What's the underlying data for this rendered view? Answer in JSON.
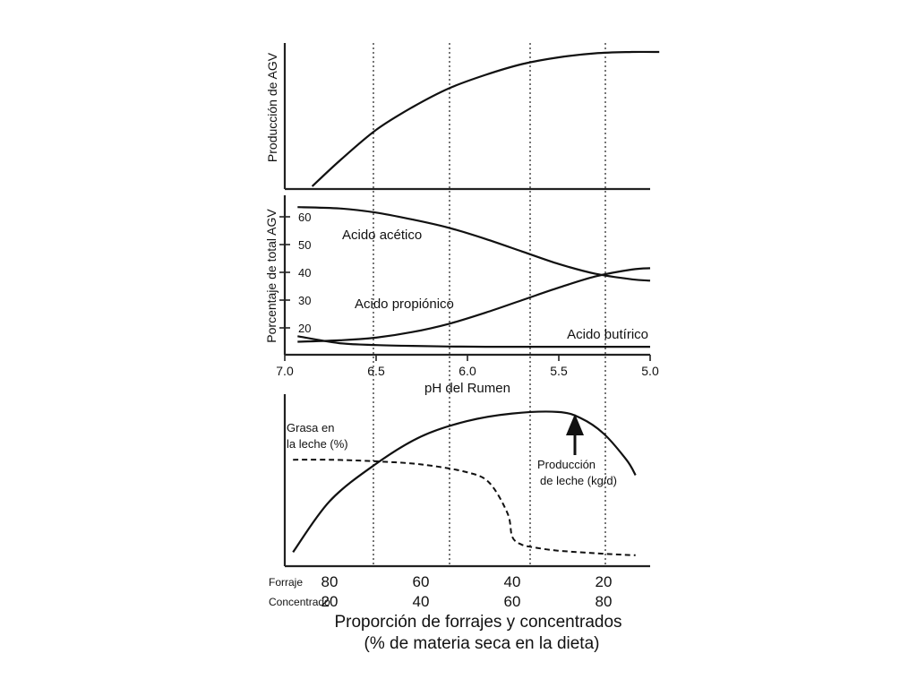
{
  "chart_data": [
    {
      "type": "line",
      "panel": "top",
      "ylabel": "Producción de AGV",
      "x_axis": "pH del Rumen",
      "xlim": [
        7.0,
        5.0
      ],
      "ylim": [
        0,
        1
      ],
      "y_ticks_printed": false,
      "series": [
        {
          "x": [
            6.85,
            6.7,
            6.5,
            6.3,
            6.1,
            5.9,
            5.7,
            5.5,
            5.3,
            5.1,
            4.95
          ],
          "y": [
            0.0,
            0.19,
            0.42,
            0.59,
            0.73,
            0.83,
            0.91,
            0.96,
            0.99,
            1.0,
            1.0
          ]
        }
      ]
    },
    {
      "type": "line",
      "panel": "middle",
      "ylabel": "Porcentaje de total AGV",
      "xlabel": "pH del Rumen",
      "xlim": [
        7.0,
        5.0
      ],
      "ylim": [
        10,
        65
      ],
      "y_ticks": [
        20,
        30,
        40,
        50,
        60
      ],
      "x_ticks": [
        "7.0",
        "6.5",
        "6.0",
        "5.5",
        "5.0"
      ],
      "series": [
        {
          "name": "Acido acético",
          "x": [
            6.93,
            6.7,
            6.5,
            6.3,
            6.1,
            5.9,
            5.7,
            5.5,
            5.3,
            5.1,
            5.0
          ],
          "y": [
            63.5,
            63,
            61.5,
            59,
            56,
            52,
            47.5,
            43,
            39.5,
            37.5,
            37
          ]
        },
        {
          "name": "Acido propiónico",
          "x": [
            6.93,
            6.7,
            6.5,
            6.3,
            6.1,
            5.9,
            5.7,
            5.5,
            5.3,
            5.1,
            5.0
          ],
          "y": [
            15,
            15.5,
            16.5,
            18.5,
            21.5,
            25.5,
            30,
            34.5,
            38.5,
            41,
            41.5
          ]
        },
        {
          "name": "Acido butírico",
          "x": [
            6.93,
            6.7,
            6.5,
            6.3,
            6.1,
            5.9,
            5.7,
            5.5,
            5.3,
            5.1,
            5.0
          ],
          "y": [
            17,
            14.5,
            13.8,
            13.5,
            13.3,
            13.2,
            13.2,
            13.2,
            13.2,
            13.2,
            13.2
          ]
        }
      ]
    },
    {
      "type": "line",
      "panel": "bottom",
      "xlabel": "Proporción de forrajes y concentrados",
      "xlabel_sub": "(% de materia seca en la dieta)",
      "x_tick_rows": [
        {
          "label": "Forraje",
          "values": [
            "80",
            "60",
            "40",
            "20"
          ]
        },
        {
          "label": "Concentrado",
          "values": [
            "20",
            "40",
            "60",
            "80"
          ]
        }
      ],
      "xlim": [
        90,
        10
      ],
      "ylim": [
        0,
        1
      ],
      "y_ticks_printed": false,
      "series": [
        {
          "name_lines": [
            "Producción",
            "de leche (kg/d)"
          ],
          "x": [
            88,
            80,
            70,
            60,
            50,
            40,
            30,
            25,
            20,
            15,
            13
          ],
          "y": [
            0.05,
            0.38,
            0.62,
            0.8,
            0.9,
            0.95,
            0.96,
            0.92,
            0.82,
            0.65,
            0.55
          ]
        },
        {
          "name_lines": [
            "Grasa en",
            "la leche (%)"
          ],
          "style": "dashed",
          "x": [
            88,
            80,
            70,
            60,
            50,
            45,
            41,
            40,
            38,
            35,
            30,
            20,
            13
          ],
          "y": [
            0.65,
            0.65,
            0.64,
            0.62,
            0.57,
            0.5,
            0.3,
            0.15,
            0.1,
            0.08,
            0.06,
            0.04,
            0.03
          ]
        }
      ],
      "annotation": "arrow pointing to the peak of the milk production curve"
    }
  ]
}
